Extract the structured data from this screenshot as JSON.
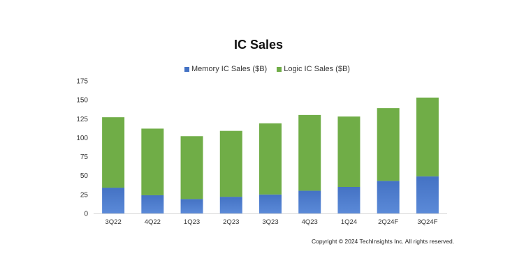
{
  "chart_data": {
    "type": "bar",
    "stacked": true,
    "title": "IC Sales",
    "categories": [
      "3Q22",
      "4Q22",
      "1Q23",
      "2Q23",
      "3Q23",
      "4Q23",
      "1Q24",
      "2Q24F",
      "3Q24F"
    ],
    "series": [
      {
        "name": "Memory IC Sales ($B)",
        "color": "#4472c4",
        "values": [
          34,
          24,
          19,
          22,
          25,
          30,
          35,
          43,
          49
        ]
      },
      {
        "name": "Logic IC Sales ($B)",
        "color": "#70ad47",
        "values": [
          93,
          88,
          83,
          87,
          94,
          100,
          93,
          96,
          104
        ]
      }
    ],
    "ylim": [
      0,
      175
    ],
    "yticks": [
      0,
      25,
      50,
      75,
      100,
      125,
      150,
      175
    ],
    "grid": false,
    "legend_position": "top"
  },
  "footer": {
    "copyright": "Copyright © 2024 TechInsights Inc.  All rights reserved."
  }
}
